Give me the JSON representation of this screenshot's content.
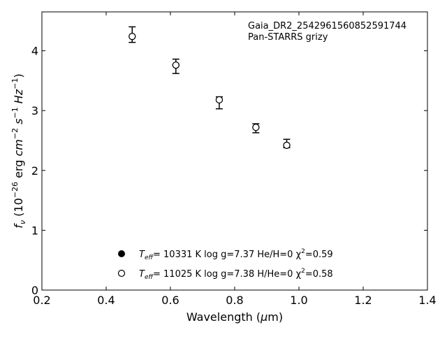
{
  "chart_data": {
    "type": "scatter",
    "xlabel": "Wavelength (µm)",
    "ylabel": "fν (10−26 erg cm−2 s−1 Hz−1)",
    "xlim": [
      0.2,
      1.4
    ],
    "ylim": [
      0,
      4.65
    ],
    "x_ticks": [
      0.2,
      0.4,
      0.6,
      0.8,
      1.0,
      1.2,
      1.4
    ],
    "x_tick_labels": [
      "0.2",
      "0.4",
      "0.6",
      "0.8",
      "1.0",
      "1.2",
      "1.4"
    ],
    "y_ticks": [
      0,
      1,
      2,
      3,
      4
    ],
    "y_tick_labels": [
      "0",
      "1",
      "2",
      "3",
      "4"
    ],
    "grid": false,
    "annotation": {
      "line1": "Gaia_DR2_2542961560852591744",
      "line2": "Pan-STARRS grizy"
    },
    "observed": {
      "x": [
        0.481,
        0.617,
        0.752,
        0.866,
        0.962
      ],
      "y": [
        4.27,
        3.75,
        3.15,
        2.71,
        2.45
      ],
      "err_low": [
        0.13,
        0.13,
        0.12,
        0.08,
        0.07
      ],
      "err_high": [
        0.13,
        0.11,
        0.08,
        0.07,
        0.07
      ],
      "color": "#000000"
    },
    "series": [
      {
        "marker": "filled-circle",
        "label_main": "T",
        "label_sub": "eff",
        "label_rest": "= 10331 K  log g=7.37  He/H=0  χ",
        "label_sup": "2",
        "label_tail": "=0.59",
        "x": [
          0.481,
          0.617,
          0.752,
          0.866,
          0.962
        ],
        "y": [
          4.24,
          3.76,
          3.18,
          2.72,
          2.42
        ]
      },
      {
        "marker": "open-circle",
        "label_main": "T",
        "label_sub": "eff",
        "label_rest": "= 11025 K  log g=7.38  H/He=0  χ",
        "label_sup": "2",
        "label_tail": "=0.58",
        "x": [
          0.481,
          0.617,
          0.752,
          0.866,
          0.962
        ],
        "y": [
          4.24,
          3.76,
          3.18,
          2.72,
          2.42
        ]
      }
    ]
  }
}
